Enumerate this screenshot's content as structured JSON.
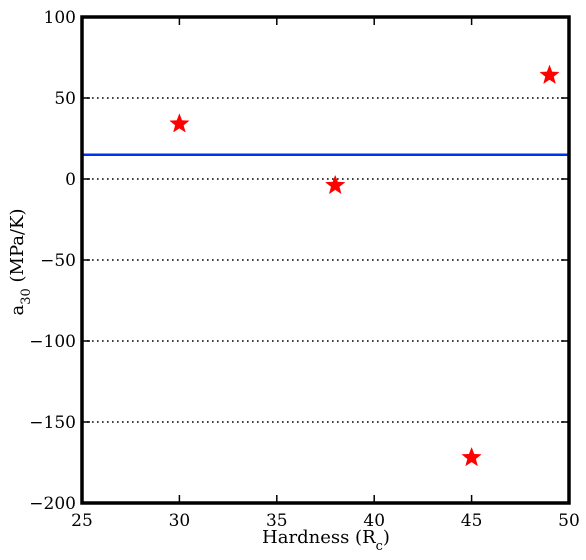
{
  "chart_data": {
    "type": "scatter",
    "title": "",
    "xlabel": {
      "main": "Hardness (R",
      "sub": "c",
      "close": ")"
    },
    "ylabel": {
      "main": "a",
      "sub": "30",
      "rest": " (MPa/K)"
    },
    "xlim": [
      25,
      50
    ],
    "ylim": [
      -200,
      100
    ],
    "xticks": [
      25,
      30,
      35,
      40,
      45,
      50
    ],
    "yticks": [
      -200,
      -150,
      -100,
      -50,
      0,
      50,
      100
    ],
    "ytick_labels": [
      "−200",
      "−150",
      "−100",
      "−50",
      "0",
      "50",
      "100"
    ],
    "grid": "horizontal dotted",
    "series": [
      {
        "marker": "star",
        "color": "#ff0000",
        "points": [
          {
            "x": 30,
            "y": 34
          },
          {
            "x": 38,
            "y": -4
          },
          {
            "x": 45,
            "y": -172
          },
          {
            "x": 49,
            "y": 64
          }
        ]
      }
    ],
    "reference_lines": [
      {
        "orientation": "horizontal",
        "y": 15,
        "color": "#0033ee"
      }
    ]
  }
}
